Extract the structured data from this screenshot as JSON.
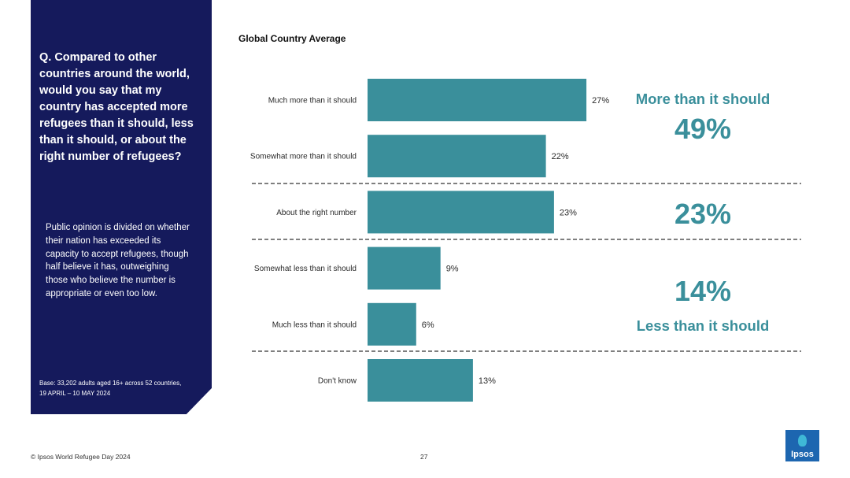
{
  "panel": {
    "question": "Q. Compared to other countries around the world, would you say that my country has accepted more refugees than it should, less than it should, or about the right number of refugees?",
    "summary": "Public opinion is divided on whether their nation has exceeded its capacity to accept refugees, though  half believe it has, outweighing those who believe the number is appropriate or even too low.",
    "base": "Base: 33,202 adults aged 16+ across 52 countries, 19 APRIL – 10 MAY 2024"
  },
  "chart_data": {
    "type": "bar",
    "orientation": "horizontal",
    "title": "Global Country Average",
    "categories": [
      "Much more than it should",
      "Somewhat more than it should",
      "About the right number",
      "Somewhat less than it should",
      "Much less than it should",
      "Don't know"
    ],
    "values": [
      27,
      22,
      23,
      9,
      6,
      13
    ],
    "value_labels": [
      "27%",
      "22%",
      "23%",
      "9%",
      "6%",
      "13%"
    ],
    "unit": "%",
    "bar_color": "#3a8f9b",
    "groups": [
      {
        "label": "More than it should",
        "percent": "49%"
      },
      {
        "label": "",
        "percent": "23%"
      },
      {
        "label": "Less than it should",
        "percent": "14%"
      }
    ]
  },
  "footer": {
    "source": "© Ipsos World Refugee Day 2024",
    "page_number": "27",
    "logo": "Ipsos"
  },
  "colors": {
    "panel": "#151a5c",
    "accent": "#3a8f9b",
    "logo": "#1d66b0"
  }
}
